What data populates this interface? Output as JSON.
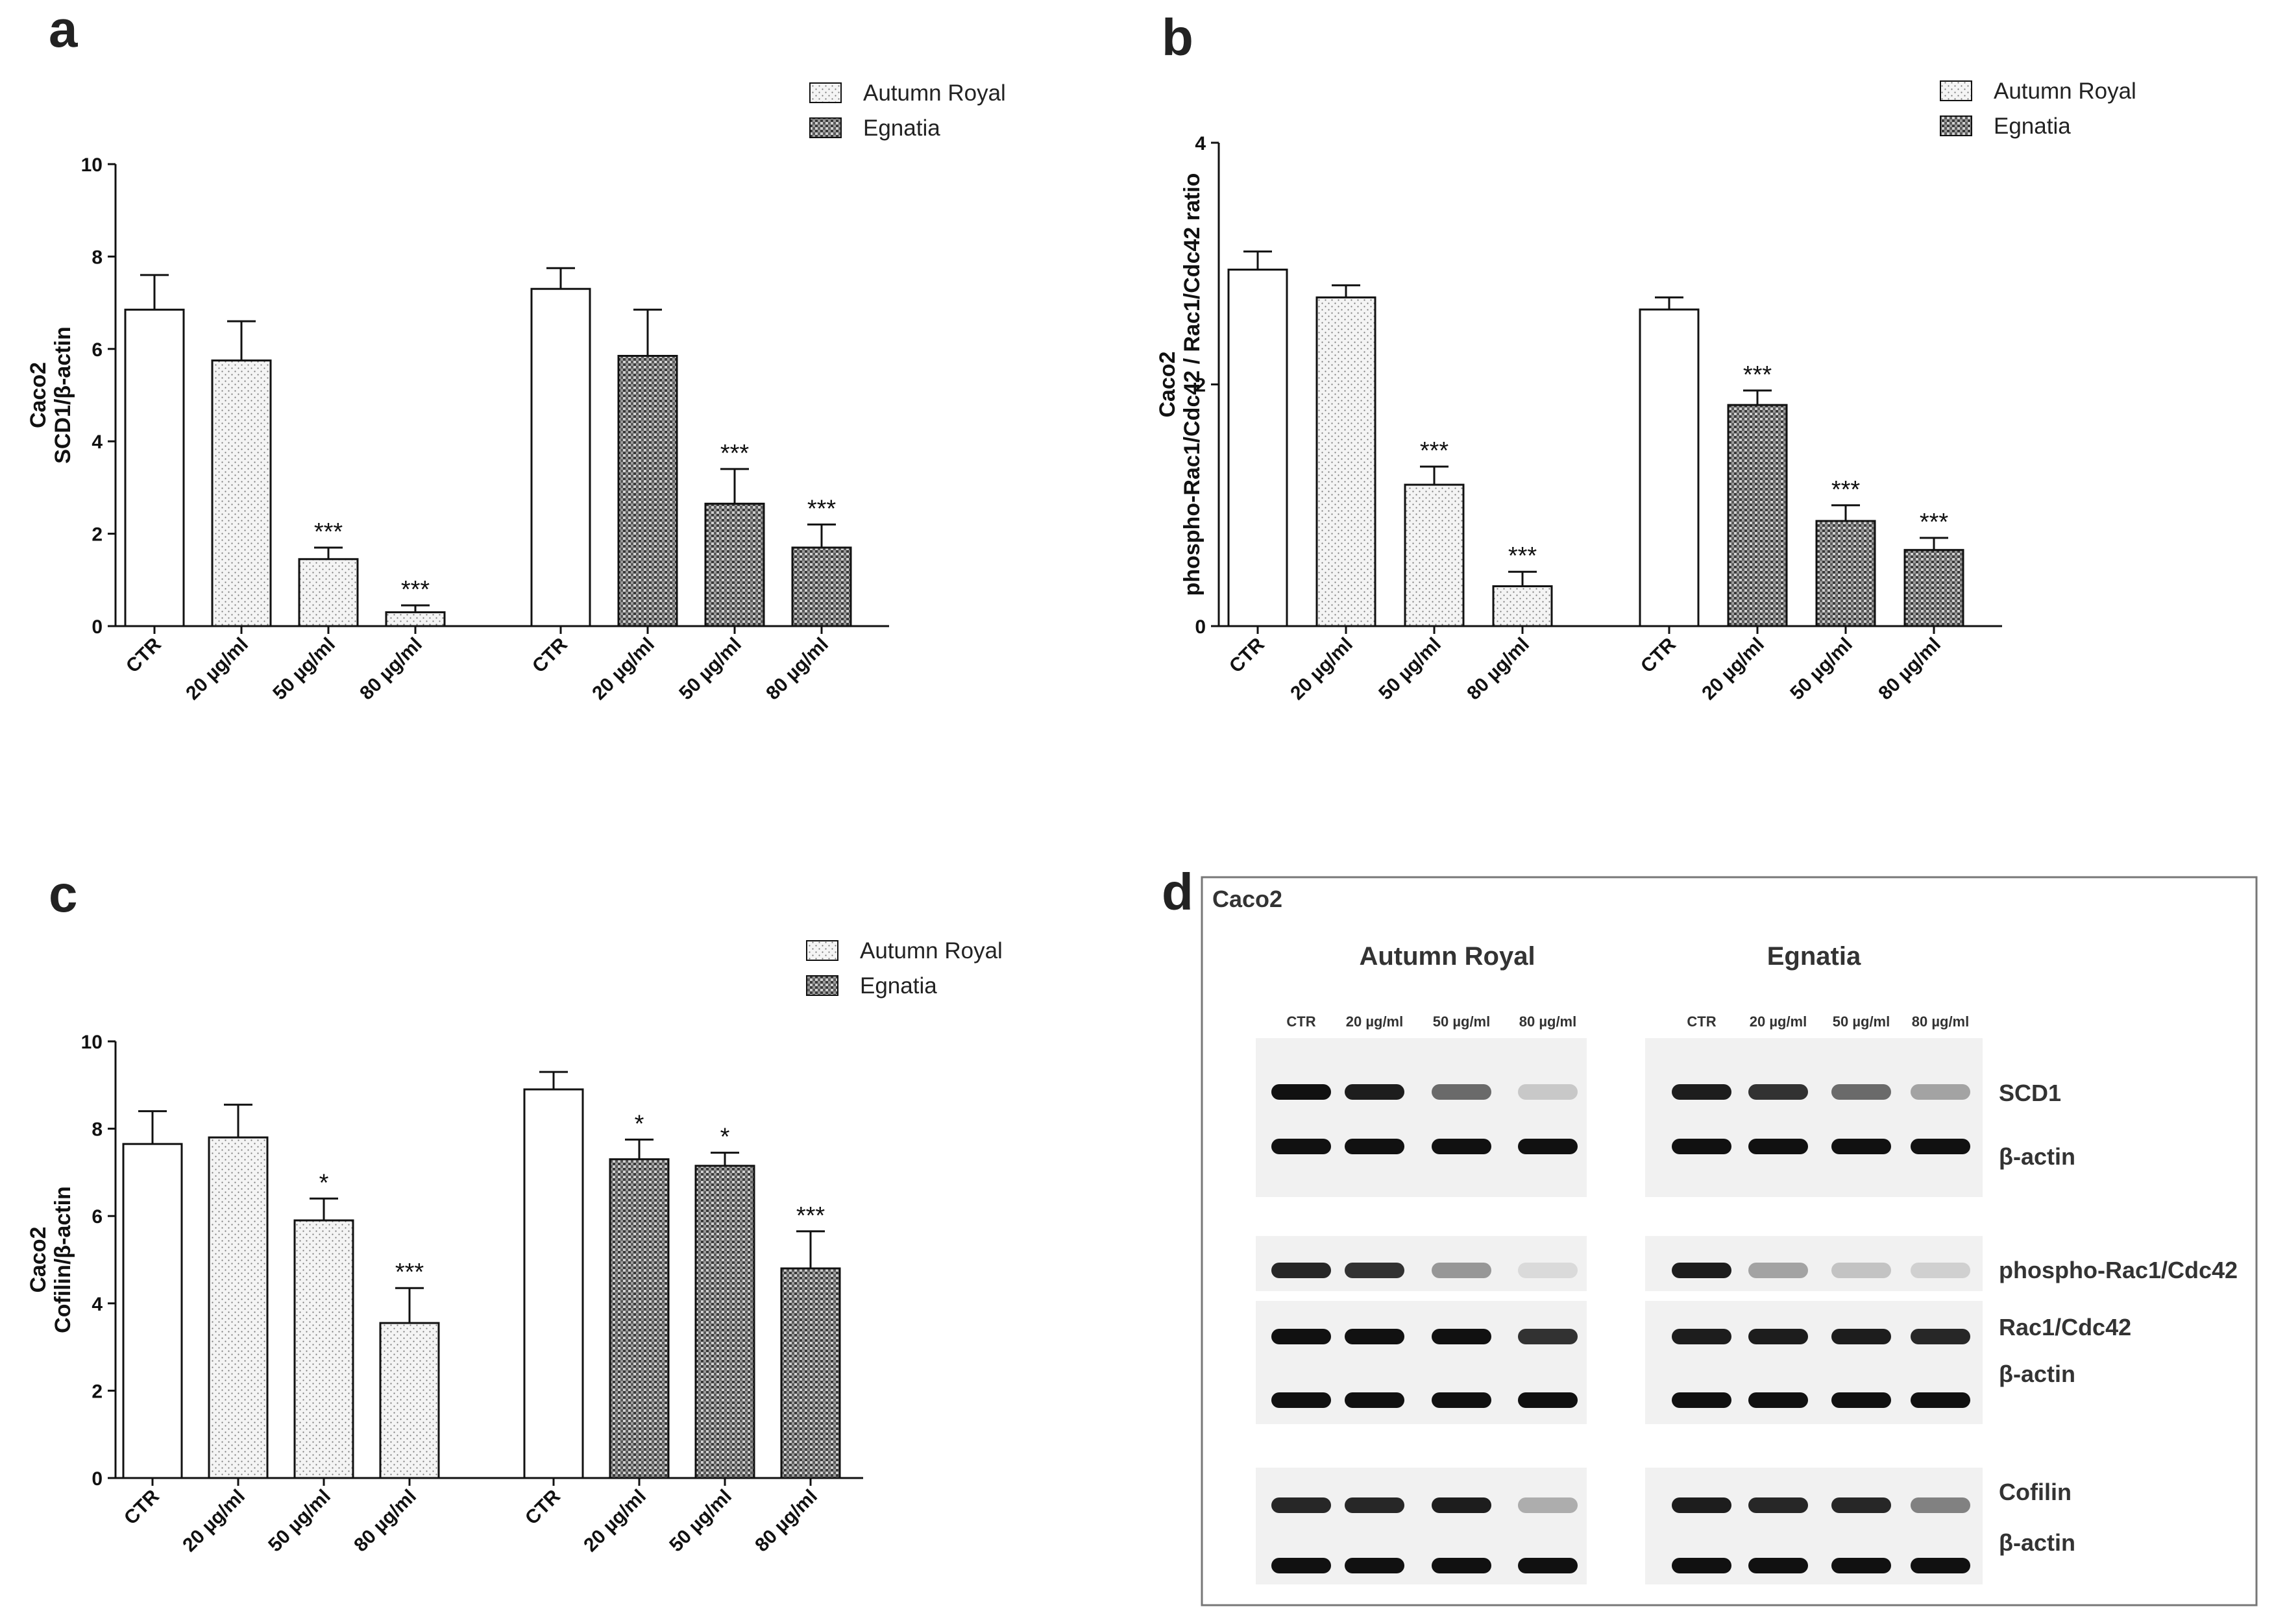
{
  "panels": [
    {
      "letter": "a",
      "chart_data": {
        "type": "bar",
        "title": "",
        "ylabel": [
          "Caco2",
          "SCD1/β-actin"
        ],
        "ylim": [
          0,
          10
        ],
        "yticks": [
          0,
          2,
          4,
          6,
          8,
          10
        ],
        "categories": [
          "CTR",
          "20 µg/ml",
          "50 µg/ml",
          "80 µg/ml"
        ],
        "series": [
          {
            "name": "Autumn Royal",
            "values": [
              6.85,
              5.75,
              1.45,
              0.3
            ],
            "errors": [
              0.75,
              0.85,
              0.25,
              0.15
            ],
            "significance": [
              "",
              "",
              "***",
              "***"
            ]
          },
          {
            "name": "Egnatia",
            "values": [
              7.3,
              5.85,
              2.65,
              1.7
            ],
            "errors": [
              0.45,
              1.0,
              0.75,
              0.5
            ],
            "significance": [
              "",
              "",
              "***",
              "***"
            ]
          }
        ],
        "legend": "top-right"
      }
    },
    {
      "letter": "b",
      "chart_data": {
        "type": "bar",
        "title": "",
        "ylabel": [
          "Caco2",
          "phospho-Rac1/Cdc42 / Rac1/Cdc42 ratio"
        ],
        "ylim": [
          0,
          4
        ],
        "yticks": [
          0,
          2,
          4
        ],
        "categories": [
          "CTR",
          "20 µg/ml",
          "50 µg/ml",
          "80 µg/ml"
        ],
        "series": [
          {
            "name": "Autumn Royal",
            "values": [
              2.95,
              2.72,
              1.17,
              0.33
            ],
            "errors": [
              0.15,
              0.1,
              0.15,
              0.12
            ],
            "significance": [
              "",
              "",
              "***",
              "***"
            ]
          },
          {
            "name": "Egnatia",
            "values": [
              2.62,
              1.83,
              0.87,
              0.63
            ],
            "errors": [
              0.1,
              0.12,
              0.13,
              0.1
            ],
            "significance": [
              "",
              "***",
              "***",
              "***"
            ]
          }
        ],
        "legend": "top-right"
      }
    },
    {
      "letter": "c",
      "chart_data": {
        "type": "bar",
        "title": "",
        "ylabel": [
          "Caco2",
          "Cofilin/β-actin"
        ],
        "ylim": [
          0,
          10
        ],
        "yticks": [
          0,
          2,
          4,
          6,
          8,
          10
        ],
        "categories": [
          "CTR",
          "20 µg/ml",
          "50 µg/ml",
          "80 µg/ml"
        ],
        "series": [
          {
            "name": "Autumn Royal",
            "values": [
              7.65,
              7.8,
              5.9,
              3.55
            ],
            "errors": [
              0.75,
              0.75,
              0.5,
              0.8
            ],
            "significance": [
              "",
              "",
              "*",
              "***"
            ]
          },
          {
            "name": "Egnatia",
            "values": [
              8.9,
              7.3,
              7.15,
              4.8
            ],
            "errors": [
              0.4,
              0.45,
              0.3,
              0.85
            ],
            "significance": [
              "",
              "*",
              "*",
              "***"
            ]
          }
        ],
        "legend": "top-right"
      }
    }
  ],
  "blot": {
    "letter": "d",
    "cell_line": "Caco2",
    "groups": [
      "Autumn Royal",
      "Egnatia"
    ],
    "lane_labels": [
      "CTR",
      "20 µg/ml",
      "50 µg/ml",
      "80 µg/ml"
    ],
    "rows": [
      {
        "label": "SCD1",
        "intensities": [
          [
            1,
            0.95,
            0.6,
            0.18
          ],
          [
            0.95,
            0.85,
            0.6,
            0.35
          ]
        ]
      },
      {
        "label": "β-actin",
        "intensities": [
          [
            1,
            1,
            1,
            1
          ],
          [
            1,
            1,
            1,
            1
          ]
        ]
      },
      {
        "label": "phospho-Rac1/Cdc42",
        "intensities": [
          [
            0.9,
            0.85,
            0.4,
            0.1
          ],
          [
            0.95,
            0.35,
            0.2,
            0.15
          ]
        ]
      },
      {
        "label": "Rac1/Cdc42",
        "intensities": [
          [
            1,
            1,
            1,
            0.85
          ],
          [
            0.95,
            0.95,
            0.95,
            0.9
          ]
        ]
      },
      {
        "label": "β-actin",
        "intensities": [
          [
            1,
            1,
            1,
            1
          ],
          [
            1,
            1,
            1,
            1
          ]
        ]
      },
      {
        "label": "Cofilin",
        "intensities": [
          [
            0.9,
            0.9,
            0.95,
            0.3
          ],
          [
            0.95,
            0.9,
            0.9,
            0.5
          ]
        ]
      },
      {
        "label": "β-actin",
        "intensities": [
          [
            1,
            1,
            1,
            1
          ],
          [
            1,
            1,
            1,
            1
          ]
        ]
      }
    ]
  }
}
